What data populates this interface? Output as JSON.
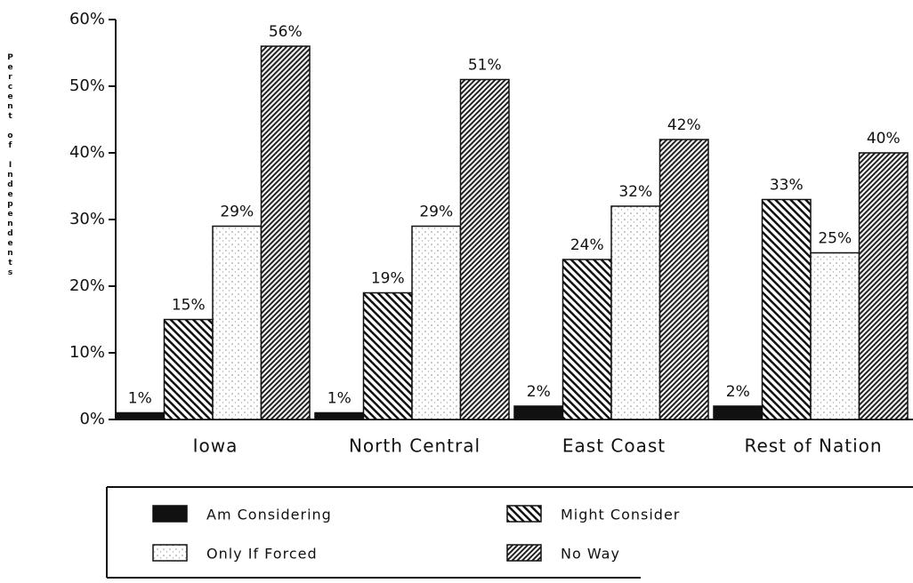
{
  "chart_data": {
    "type": "bar",
    "y_label": "Percent of Independents",
    "categories": [
      "Iowa",
      "North Central",
      "East Coast",
      "Rest of Nation"
    ],
    "series": [
      {
        "name": "Am Considering",
        "color": "#111111",
        "pattern": "solid",
        "values": [
          1,
          1,
          2,
          2
        ],
        "value_labels": [
          "1%",
          "1%",
          "2%",
          "2%"
        ]
      },
      {
        "name": "Might Consider",
        "color": "#111111",
        "pattern": "back-diagonal",
        "values": [
          15,
          19,
          24,
          33
        ],
        "value_labels": [
          "15%",
          "19%",
          "24%",
          "33%"
        ]
      },
      {
        "name": "Only If Forced",
        "color": "#111111",
        "pattern": "dots",
        "values": [
          29,
          29,
          32,
          25
        ],
        "value_labels": [
          "29%",
          "29%",
          "32%",
          "25%"
        ]
      },
      {
        "name": "No Way",
        "color": "#111111",
        "pattern": "forward-diagonal",
        "values": [
          56,
          51,
          42,
          40
        ],
        "value_labels": [
          "56%",
          "51%",
          "42%",
          "40%"
        ]
      }
    ],
    "ylim": [
      0,
      60
    ],
    "yticks": [
      {
        "value": 0,
        "label": "0%"
      },
      {
        "value": 10,
        "label": "10%"
      },
      {
        "value": 20,
        "label": "20%"
      },
      {
        "value": 30,
        "label": "30%"
      },
      {
        "value": 40,
        "label": "40%"
      },
      {
        "value": 50,
        "label": "50%"
      },
      {
        "value": 60,
        "label": "60%"
      }
    ],
    "grid": false,
    "legend": "bottom"
  }
}
